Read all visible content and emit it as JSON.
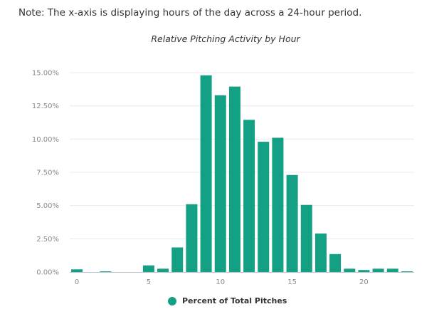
{
  "note": "Note: The x-axis is displaying hours of the day across a 24-hour period.",
  "chart_data": {
    "type": "bar",
    "title": "Relative Pitching Activity by Hour",
    "xlabel": "",
    "ylabel": "",
    "x": [
      0,
      1,
      2,
      3,
      4,
      5,
      6,
      7,
      8,
      9,
      10,
      11,
      12,
      13,
      14,
      15,
      16,
      17,
      18,
      19,
      20,
      21,
      22,
      23
    ],
    "series": [
      {
        "name": "Percent of Total Pitches",
        "color": "#13a085",
        "values": [
          0.2,
          0.0,
          0.05,
          0.0,
          0.0,
          0.5,
          0.25,
          1.85,
          5.1,
          14.8,
          13.3,
          13.95,
          11.45,
          9.8,
          10.1,
          7.3,
          5.05,
          2.9,
          1.35,
          0.25,
          0.15,
          0.25,
          0.25,
          0.05
        ]
      }
    ],
    "xticks": [
      0,
      5,
      10,
      15,
      20
    ],
    "yticks": [
      0,
      2.5,
      5,
      7.5,
      10,
      12.5,
      15
    ],
    "ytick_labels": [
      "0.00%",
      "2.50%",
      "5.00%",
      "7.50%",
      "10.00%",
      "12.50%",
      "15.00%"
    ],
    "xlim": [
      -0.5,
      23.5
    ],
    "ylim": [
      0,
      15
    ],
    "grid": true,
    "legend_position": "bottom-center"
  }
}
